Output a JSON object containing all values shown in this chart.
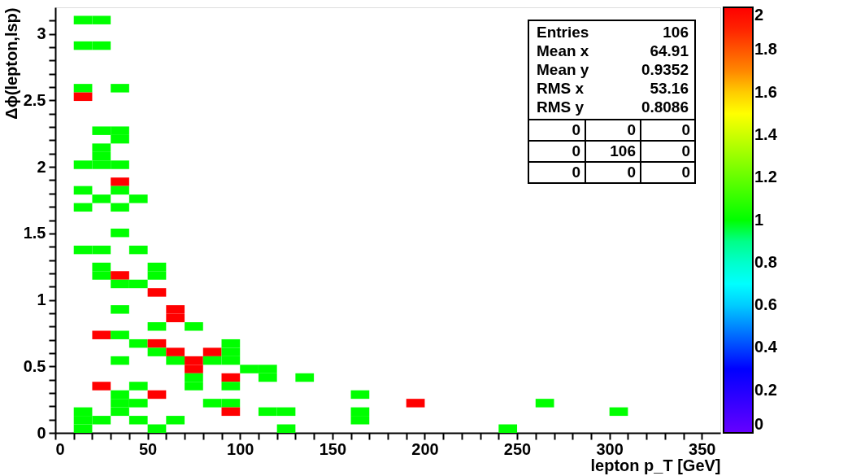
{
  "chart_data": {
    "type": "scatter",
    "marker": "square",
    "xlabel": "lepton p_T [GeV]",
    "ylabel": "Δϕ(lepton,lsp)",
    "xlim": [
      0,
      360
    ],
    "ylim": [
      0,
      3.2
    ],
    "xticks": [
      0,
      {
        "value": 10,
        "label": null
      },
      {
        "value": 20,
        "label": null
      },
      {
        "value": 30,
        "label": null
      },
      {
        "value": 40,
        "label": null
      },
      50,
      {
        "value": 60,
        "label": null
      },
      {
        "value": 70,
        "label": null
      },
      {
        "value": 80,
        "label": null
      },
      {
        "value": 90,
        "label": null
      },
      100,
      {
        "value": 110,
        "label": null
      },
      {
        "value": 120,
        "label": null
      },
      {
        "value": 130,
        "label": null
      },
      {
        "value": 140,
        "label": null
      },
      150,
      {
        "value": 160,
        "label": null
      },
      {
        "value": 170,
        "label": null
      },
      {
        "value": 180,
        "label": null
      },
      {
        "value": 190,
        "label": null
      },
      200,
      {
        "value": 210,
        "label": null
      },
      {
        "value": 220,
        "label": null
      },
      {
        "value": 230,
        "label": null
      },
      {
        "value": 240,
        "label": null
      },
      250,
      {
        "value": 260,
        "label": null
      },
      {
        "value": 270,
        "label": null
      },
      {
        "value": 280,
        "label": null
      },
      {
        "value": 290,
        "label": null
      },
      300,
      {
        "value": 310,
        "label": null
      },
      {
        "value": 320,
        "label": null
      },
      {
        "value": 330,
        "label": null
      },
      {
        "value": 340,
        "label": null
      },
      350
    ],
    "yticks": [
      0,
      {
        "value": 0.1,
        "label": null
      },
      {
        "value": 0.2,
        "label": null
      },
      {
        "value": 0.3,
        "label": null
      },
      {
        "value": 0.4,
        "label": null
      },
      0.5,
      {
        "value": 0.6,
        "label": null
      },
      {
        "value": 0.7,
        "label": null
      },
      {
        "value": 0.8,
        "label": null
      },
      {
        "value": 0.9,
        "label": null
      },
      1,
      {
        "value": 1.1,
        "label": null
      },
      {
        "value": 1.2,
        "label": null
      },
      {
        "value": 1.3,
        "label": null
      },
      {
        "value": 1.4,
        "label": null
      },
      1.5,
      {
        "value": 1.6,
        "label": null
      },
      {
        "value": 1.7,
        "label": null
      },
      {
        "value": 1.8,
        "label": null
      },
      {
        "value": 1.9,
        "label": null
      },
      2,
      {
        "value": 2.1,
        "label": null
      },
      {
        "value": 2.2,
        "label": null
      },
      {
        "value": 2.3,
        "label": null
      },
      {
        "value": 2.4,
        "label": null
      },
      2.5,
      {
        "value": 2.6,
        "label": null
      },
      {
        "value": 2.7,
        "label": null
      },
      {
        "value": 2.8,
        "label": null
      },
      {
        "value": 2.9,
        "label": null
      },
      3,
      {
        "value": 3.1,
        "label": null
      }
    ],
    "clim": [
      0,
      2
    ],
    "cticks": [
      0,
      0.2,
      0.4,
      0.6,
      0.8,
      1,
      1.2,
      1.4,
      1.6,
      1.8,
      2
    ],
    "colors": [
      "#6600ff",
      "#4400ff",
      "#2200ff",
      "#0000ff",
      "#0044ff",
      "#0088ff",
      "#00ccff",
      "#00ffff",
      "#00ffcc",
      "#00ff88",
      "#00ff00",
      "#33ff00",
      "#66ff00",
      "#99ff00",
      "#ccff00",
      "#ffff00",
      "#ffcc00",
      "#ff8800",
      "#ff5500",
      "#ff2200",
      "#ff0000"
    ],
    "annotations": [
      "Entries",
      "106",
      "Mean x",
      "64.91",
      "Mean y",
      "0.9352",
      "RMS x",
      "53.16",
      "RMS y",
      "0.8086",
      "0",
      "0",
      "0",
      "0",
      "106",
      "0",
      "0",
      "0",
      "0"
    ],
    "series": [
      {
        "x": [
          15,
          25,
          15,
          25,
          15,
          35,
          15,
          25,
          35,
          35,
          25,
          25,
          15,
          25,
          35,
          35,
          15,
          35,
          25,
          45,
          15,
          35,
          35,
          15,
          25,
          45,
          25,
          55,
          25,
          35,
          55,
          35,
          45,
          55,
          35,
          65,
          65,
          55,
          75,
          25,
          35,
          45,
          55,
          95,
          55,
          65,
          85,
          95,
          35,
          65,
          75,
          85,
          95,
          75,
          105,
          115,
          75,
          95,
          115,
          135,
          25,
          45,
          75,
          95,
          35,
          55,
          165,
          35,
          45,
          85,
          95,
          195,
          265,
          15,
          35,
          95,
          115,
          125,
          165,
          305,
          15,
          25,
          45,
          65,
          165,
          15,
          55,
          125,
          245
        ],
        "values": [
          3.104,
          3.104,
          2.912,
          2.912,
          2.592,
          2.592,
          2.528,
          2.272,
          2.272,
          2.208,
          2.144,
          2.08,
          2.016,
          2.016,
          2.016,
          1.888,
          1.824,
          1.824,
          1.76,
          1.76,
          1.696,
          1.696,
          1.504,
          1.376,
          1.376,
          1.376,
          1.248,
          1.248,
          1.184,
          1.184,
          1.184,
          1.12,
          1.12,
          1.056,
          0.928,
          0.928,
          0.864,
          0.8,
          0.8,
          0.736,
          0.736,
          0.672,
          0.672,
          0.672,
          0.608,
          0.608,
          0.608,
          0.608,
          0.544,
          0.544,
          0.544,
          0.544,
          0.544,
          0.48,
          0.48,
          0.48,
          0.416,
          0.416,
          0.416,
          0.416,
          0.352,
          0.352,
          0.352,
          0.352,
          0.288,
          0.288,
          0.288,
          0.224,
          0.224,
          0.224,
          0.224,
          0.224,
          0.224,
          0.16,
          0.16,
          0.16,
          0.16,
          0.16,
          0.16,
          0.16,
          0.096,
          0.096,
          0.096,
          0.096,
          0.096,
          0.032,
          0.032,
          0.032,
          0.032
        ],
        "cvalues": [
          1,
          1,
          1,
          1,
          1,
          1,
          2,
          1,
          1,
          1,
          1,
          1,
          1,
          1,
          1,
          2,
          1,
          1,
          1,
          1,
          1,
          1,
          1,
          1,
          1,
          1,
          1,
          1,
          1,
          2,
          1,
          1,
          1,
          2,
          1,
          2,
          2,
          1,
          1,
          2,
          1,
          1,
          2,
          1,
          1,
          2,
          2,
          1,
          1,
          1,
          2,
          1,
          1,
          2,
          1,
          1,
          1,
          2,
          1,
          1,
          2,
          1,
          1,
          1,
          1,
          2,
          1,
          1,
          1,
          1,
          1,
          2,
          1,
          1,
          1,
          2,
          1,
          1,
          1,
          1,
          1,
          1,
          1,
          1,
          1,
          1,
          1,
          1,
          1
        ]
      }
    ]
  }
}
